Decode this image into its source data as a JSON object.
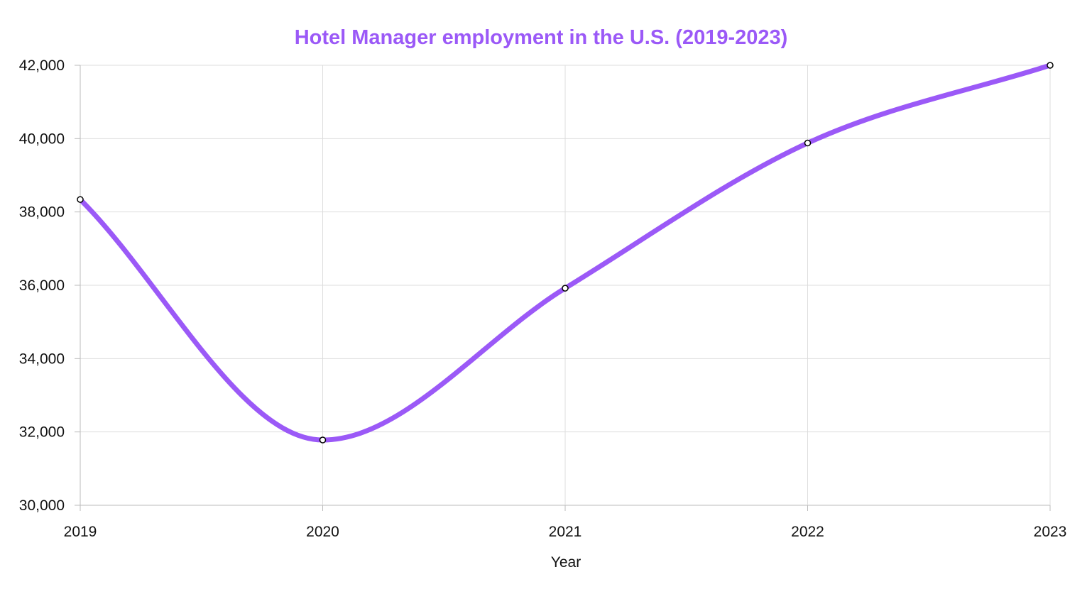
{
  "chart_data": {
    "type": "line",
    "title": "Hotel Manager employment in the U.S. (2019-2023)",
    "xlabel": "Year",
    "ylabel": "",
    "x": [
      "2019",
      "2020",
      "2021",
      "2022",
      "2023"
    ],
    "y_ticks": [
      "30,000",
      "32,000",
      "34,000",
      "36,000",
      "38,000",
      "40,000",
      "42,000"
    ],
    "ylim": [
      30000,
      42000
    ],
    "series": [
      {
        "values": [
          38340,
          31780,
          35920,
          39880,
          42000
        ]
      }
    ],
    "grid": true,
    "smooth": true,
    "colors": {
      "title": "#9b59f7",
      "line": "#9b59f7",
      "grid": "#dddddd",
      "axis": "#bbbbbb",
      "point_fill": "#ffffff",
      "point_stroke": "#000000"
    }
  }
}
